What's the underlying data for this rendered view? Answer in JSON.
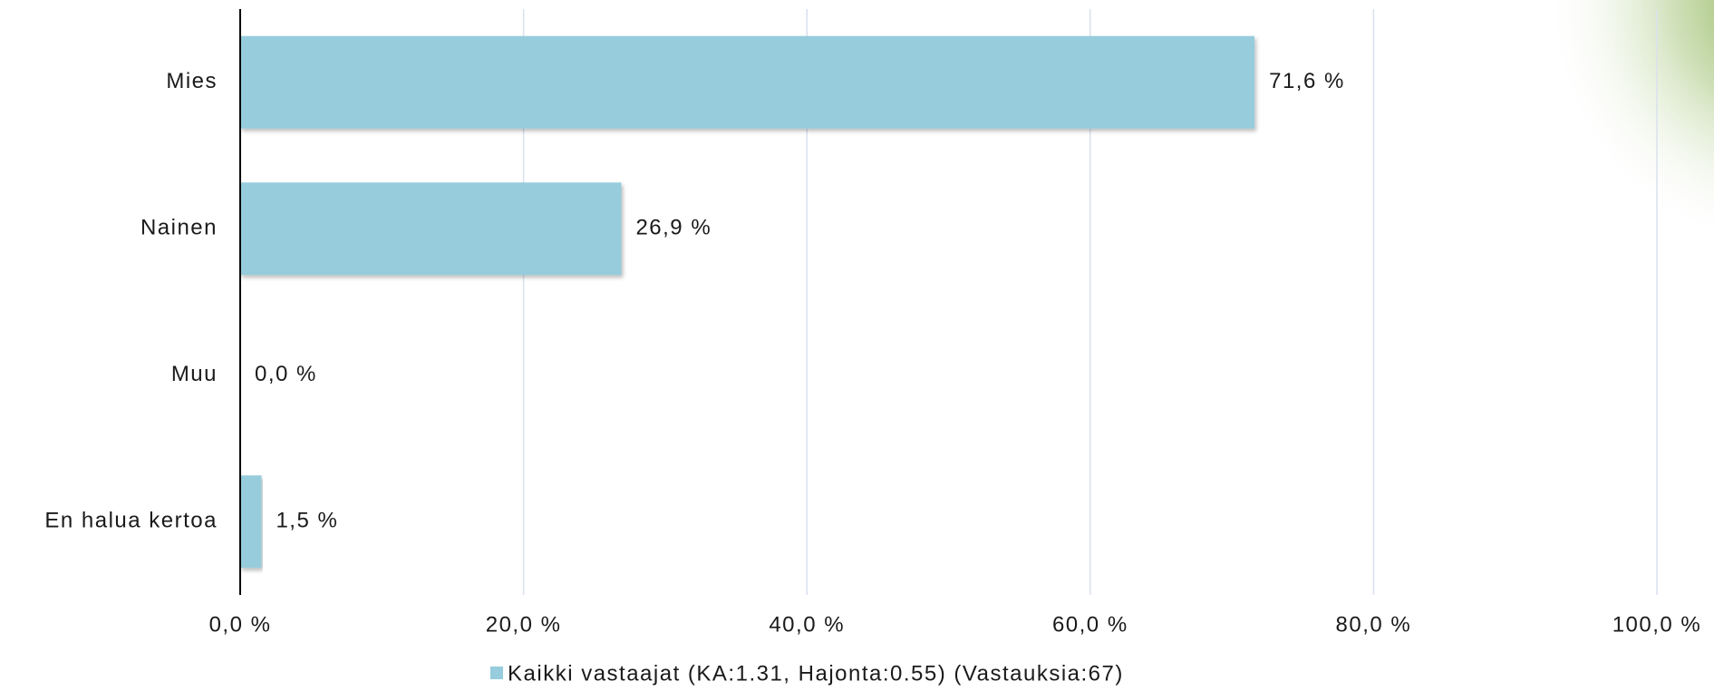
{
  "chart_data": {
    "type": "hbar",
    "categories": [
      "Mies",
      "Nainen",
      "Muu",
      "En halua kertoa"
    ],
    "series": [
      {
        "name": "Kaikki vastaajat (KA:1.31, Hajonta:0.55) (Vastauksia:67)",
        "color": "#96ccdc",
        "values": [
          71.6,
          26.9,
          0.0,
          1.5
        ],
        "value_labels": [
          "71,6 %",
          "26,9 %",
          "0,0 %",
          "1,5 %"
        ]
      }
    ],
    "xlim": [
      0,
      100
    ],
    "xticks": [
      {
        "value": 0,
        "label": "0,0 %"
      },
      {
        "value": 20,
        "label": "20,0 %"
      },
      {
        "value": 40,
        "label": "40,0 %"
      },
      {
        "value": 60,
        "label": "60,0 %"
      },
      {
        "value": 80,
        "label": "80,0 %"
      },
      {
        "value": 100,
        "label": "100,0 %"
      }
    ],
    "grid": true
  }
}
